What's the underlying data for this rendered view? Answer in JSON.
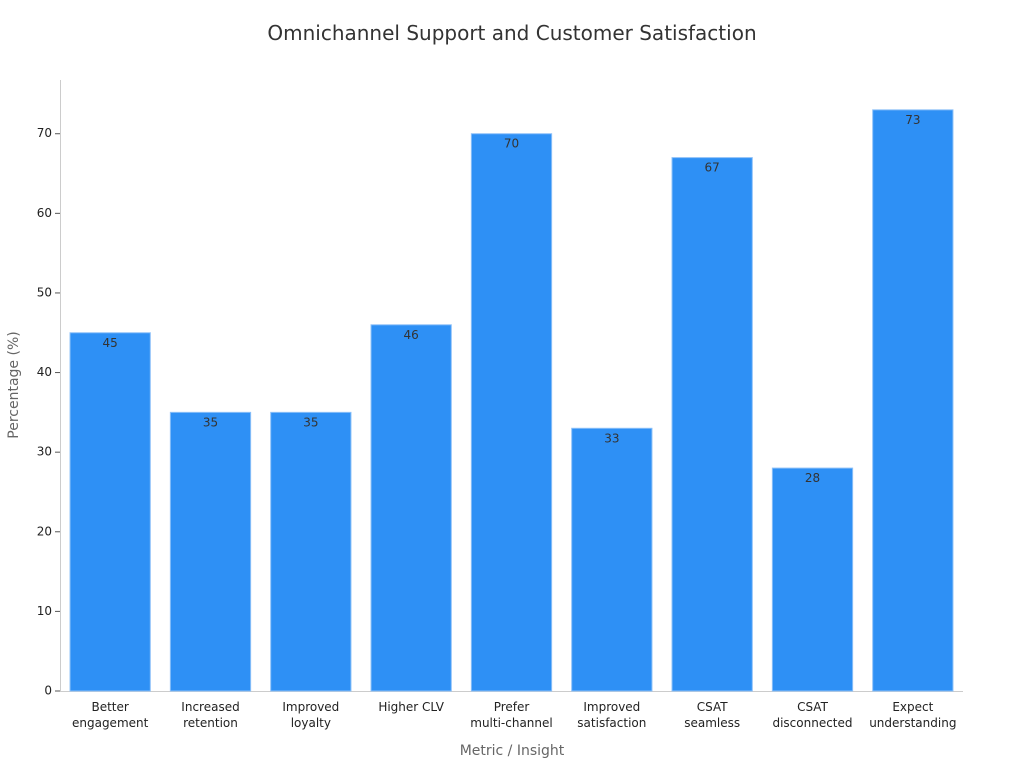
{
  "chart_data": {
    "type": "bar",
    "title": "Omnichannel Support and Customer Satisfaction",
    "x_label": "Metric / Insight",
    "y_label": "Percentage (%)",
    "categories": [
      "Better\nengagement",
      "Increased\nretention",
      "Improved\nloyalty",
      "Higher CLV",
      "Prefer\nmulti-channel",
      "Improved\nsatisfaction",
      "CSAT\nseamless",
      "CSAT\ndisconnected",
      "Expect\nunderstanding"
    ],
    "values": [
      45,
      35,
      35,
      46,
      70,
      33,
      67,
      28,
      73
    ],
    "color": "#2e90f5",
    "ylim": [
      0,
      77
    ],
    "yticks": [
      0,
      10,
      20,
      30,
      40,
      50,
      60,
      70
    ],
    "grid": false
  }
}
